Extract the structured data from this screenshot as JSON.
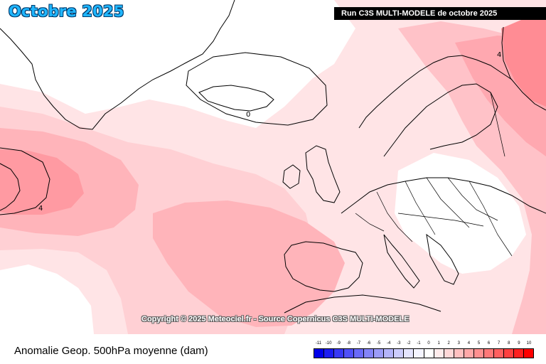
{
  "header": {
    "title": "Octobre 2025",
    "run_label": "Run C3S MULTI-MODELE de octobre 2025"
  },
  "map": {
    "copyright": "Copyright © 2025 Meteociel.fr - Source Copernicus C3S MULTI-MODELE",
    "contour_labels": [
      "0",
      "4",
      "4"
    ]
  },
  "footer": {
    "label": "Anomalie Geop. 500hPa moyenne (dam)"
  },
  "legend": {
    "ticks": [
      "-11",
      "-10",
      "-9",
      "-8",
      "-7",
      "-6",
      "-5",
      "-4",
      "-3",
      "-2",
      "-1",
      "0",
      "1",
      "2",
      "3",
      "4",
      "5",
      "6",
      "7",
      "8",
      "9",
      "10"
    ],
    "colors": [
      "#0000e8",
      "#1c1cf0",
      "#3838f4",
      "#5050f8",
      "#6a6af8",
      "#8484f8",
      "#9c9cf8",
      "#b4b4fa",
      "#ccccfc",
      "#e4e4fe",
      "#f4f4ff",
      "#ffffff",
      "#ffecec",
      "#ffd8d8",
      "#ffc0c0",
      "#ffa8a8",
      "#ff9090",
      "#ff7878",
      "#ff6060",
      "#ff4040",
      "#ff2020",
      "#ff0000"
    ]
  }
}
